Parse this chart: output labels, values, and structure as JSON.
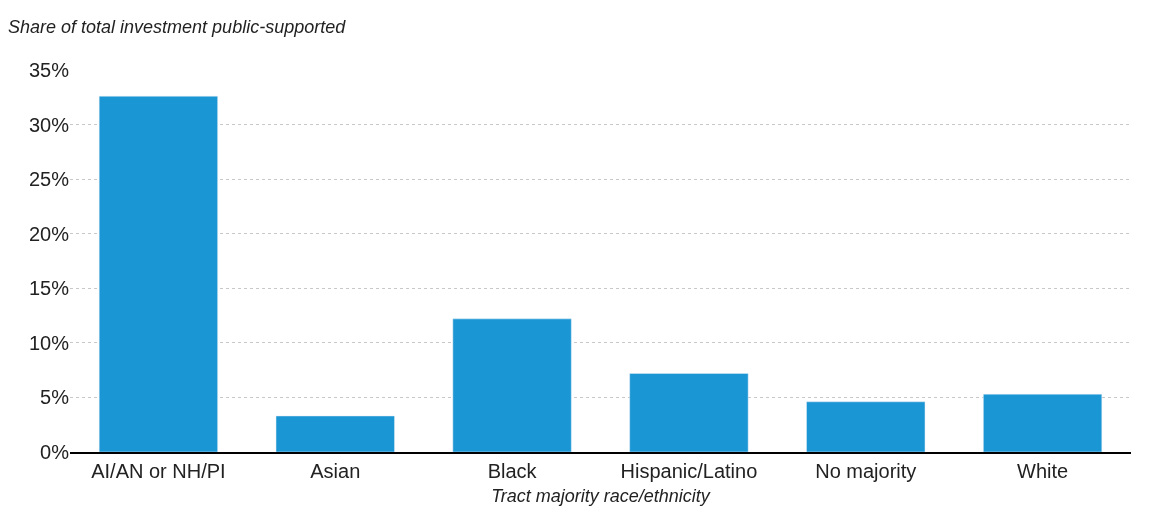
{
  "chart_data": {
    "type": "bar",
    "ylabel": "Share of total investment public-supported",
    "xlabel": "Tract majority race/ethnicity",
    "categories": [
      "AI/AN or NH/PI",
      "Asian",
      "Black",
      "Hispanic/Latino",
      "No majority",
      "White"
    ],
    "values": [
      32.6,
      3.3,
      12.2,
      7.2,
      4.6,
      5.3
    ],
    "color": "#1a96d4",
    "ylim": [
      0,
      35
    ],
    "yticks": [
      {
        "value": 0,
        "label": "0%"
      },
      {
        "value": 5,
        "label": "5%"
      },
      {
        "value": 10,
        "label": "10%"
      },
      {
        "value": 15,
        "label": "15%"
      },
      {
        "value": 20,
        "label": "20%"
      },
      {
        "value": 25,
        "label": "25%"
      },
      {
        "value": 30,
        "label": "30%"
      },
      {
        "value": 35,
        "label": "35%"
      }
    ],
    "grid": "y"
  }
}
